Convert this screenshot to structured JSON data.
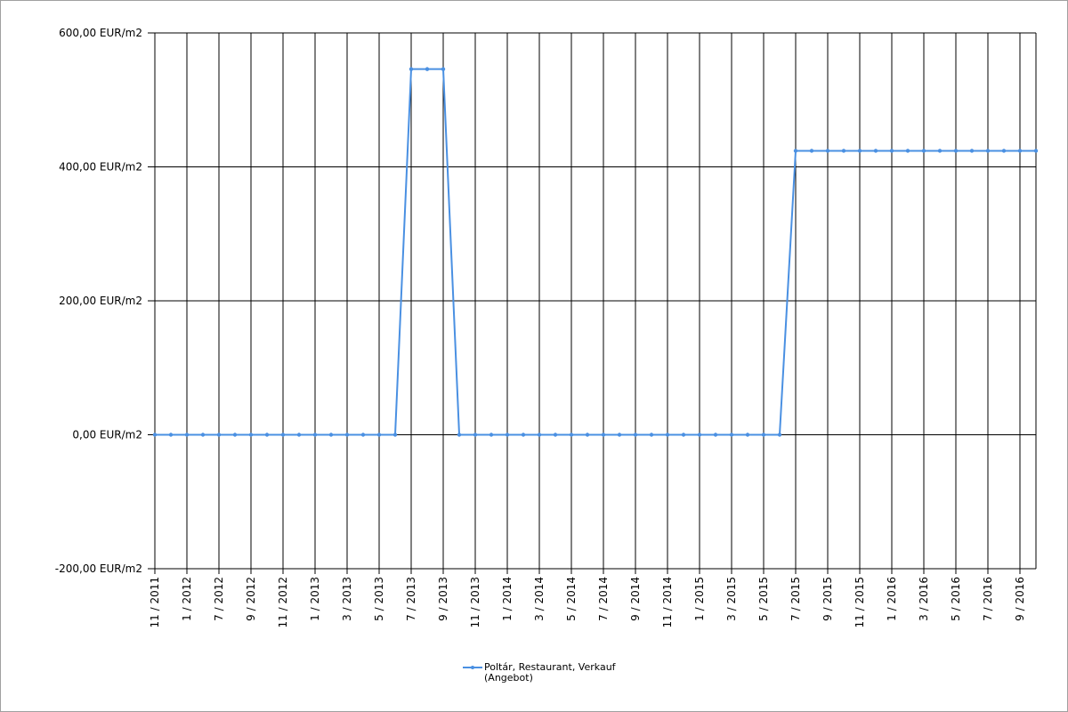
{
  "chart_data": {
    "type": "line",
    "categories": [
      "11 / 2011",
      null,
      "1 / 2012",
      null,
      "7 / 2012",
      null,
      "9 / 2012",
      null,
      "11 / 2012",
      null,
      "1 / 2013",
      null,
      "3 / 2013",
      null,
      "5 / 2013",
      null,
      "7 / 2013",
      null,
      "9 / 2013",
      null,
      "11 / 2013",
      null,
      "1 / 2014",
      null,
      "3 / 2014",
      null,
      "5 / 2014",
      null,
      "7 / 2014",
      null,
      "9 / 2014",
      null,
      "11 / 2014",
      null,
      "1 / 2015",
      null,
      "3 / 2015",
      null,
      "5 / 2015",
      null,
      "7 / 2015",
      null,
      "9 / 2015",
      null,
      "11 / 2015",
      null,
      "1 / 2016",
      null,
      "3 / 2016",
      null,
      "5 / 2016",
      null,
      "7 / 2016",
      null,
      "9 / 2016",
      null
    ],
    "series": [
      {
        "name": "Poltár, Restaurant, Verkauf (Angebot)",
        "color": "#4a90e2",
        "values": [
          0,
          0,
          0,
          0,
          0,
          0,
          0,
          0,
          0,
          0,
          0,
          0,
          0,
          0,
          0,
          0,
          546,
          546,
          546,
          0,
          0,
          0,
          0,
          0,
          0,
          0,
          0,
          0,
          0,
          0,
          0,
          0,
          0,
          0,
          0,
          0,
          0,
          0,
          0,
          0,
          424,
          424,
          424,
          424,
          424,
          424,
          424,
          424,
          424,
          424,
          424,
          424,
          424,
          424,
          424,
          424
        ]
      }
    ],
    "ylim": [
      -200,
      600
    ],
    "yticks": [
      {
        "value": -200,
        "label": "-200,00 EUR/m2"
      },
      {
        "value": 0,
        "label": "0,00 EUR/m2"
      },
      {
        "value": 200,
        "label": "200,00 EUR/m2"
      },
      {
        "value": 400,
        "label": "400,00 EUR/m2"
      },
      {
        "value": 600,
        "label": "600,00 EUR/m2"
      }
    ],
    "grid": true
  }
}
